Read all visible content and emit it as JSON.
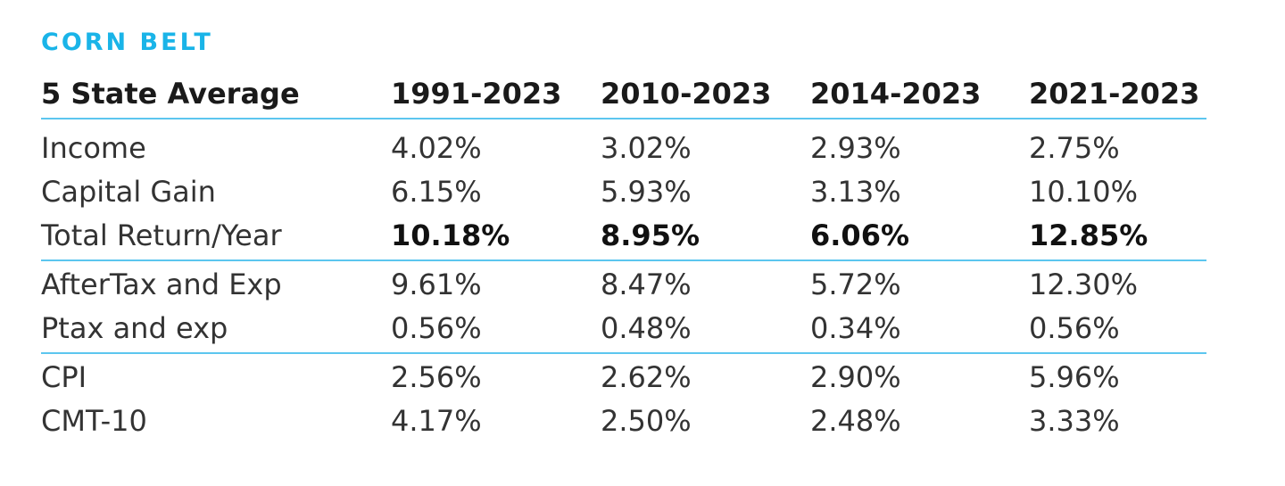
{
  "title": "CORN BELT",
  "header": [
    "5 State Average",
    "1991-2023",
    "2010-2023",
    "2014-2023",
    "2021-2023"
  ],
  "groups": [
    [
      {
        "label": "Income",
        "values": [
          "4.02%",
          "3.02%",
          "2.93%",
          "2.75%"
        ]
      },
      {
        "label": "Capital Gain",
        "values": [
          "6.15%",
          "5.93%",
          "3.13%",
          "10.10%"
        ]
      },
      {
        "label": "Total Return/Year",
        "values": [
          "10.18%",
          "8.95%",
          "6.06%",
          "12.85%"
        ]
      }
    ],
    [
      {
        "label": "AfterTax and Exp",
        "values": [
          "9.61%",
          "8.47%",
          "5.72%",
          "12.30%"
        ]
      },
      {
        "label": "Ptax and exp",
        "values": [
          "0.56%",
          "0.48%",
          "0.34%",
          "0.56%"
        ]
      }
    ],
    [
      {
        "label": "CPI",
        "values": [
          "2.56%",
          "2.62%",
          "2.90%",
          "5.96%"
        ]
      },
      {
        "label": "CMT-10",
        "values": [
          "4.17%",
          "2.50%",
          "2.48%",
          "3.33%"
        ]
      }
    ]
  ],
  "colors": {
    "accent": "#1ab4e8",
    "rule": "#5cc6ef"
  }
}
